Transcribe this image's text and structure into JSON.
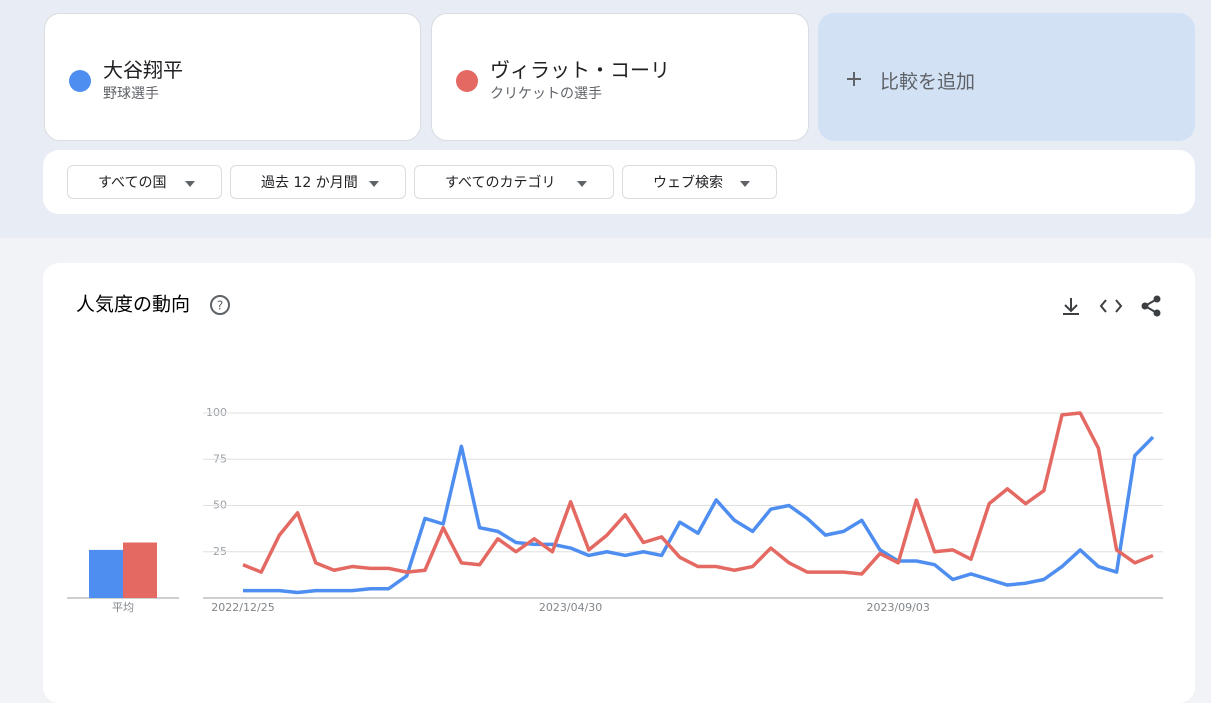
{
  "terms": [
    {
      "subtitle": "野球選手"
    },
    {
      "subtitle": "クリケットの選手"
    }
  ],
  "add_compare": "比較を追加",
  "filters": [
    "すべての国",
    "過去 12 か月間",
    "すべてのカテゴリ",
    "ウェブ検索"
  ],
  "chart_data": {
    "type": "line",
    "title": "人気度の動向",
    "categories": [
      "2022/12/25",
      null,
      null,
      null,
      null,
      null,
      null,
      null,
      null,
      null,
      null,
      null,
      null,
      null,
      null,
      null,
      null,
      null,
      "2023/04/30",
      null,
      null,
      null,
      null,
      null,
      null,
      null,
      null,
      null,
      null,
      null,
      null,
      null,
      null,
      null,
      null,
      null,
      "2023/09/03",
      null,
      null,
      null,
      null,
      null,
      null,
      null,
      null,
      null,
      null,
      null,
      null,
      null,
      null
    ],
    "series": [
      {
        "name": "大谷翔平",
        "color": "#4e8ef0",
        "values": [
          4,
          4,
          4,
          3,
          4,
          4,
          4,
          5,
          5,
          12,
          43,
          40,
          82,
          38,
          36,
          30,
          29,
          29,
          27,
          23,
          25,
          23,
          25,
          23,
          41,
          35,
          53,
          42,
          36,
          48,
          50,
          43,
          34,
          36,
          42,
          26,
          20,
          20,
          18,
          10,
          13,
          10,
          7,
          8,
          10,
          17,
          26,
          17,
          14,
          77,
          87
        ]
      },
      {
        "name": "ヴィラット・コーリ",
        "color": "#e46962",
        "values": [
          18,
          14,
          34,
          46,
          19,
          15,
          17,
          16,
          16,
          14,
          15,
          38,
          19,
          18,
          32,
          25,
          32,
          25,
          52,
          26,
          34,
          45,
          30,
          33,
          22,
          17,
          17,
          15,
          17,
          27,
          19,
          14,
          14,
          14,
          13,
          24,
          19,
          53,
          25,
          26,
          21,
          51,
          59,
          51,
          58,
          99,
          100,
          81,
          26,
          19,
          23
        ]
      }
    ],
    "ylim": [
      0,
      100
    ],
    "yticks": [
      25,
      50,
      75,
      100
    ],
    "grid": true,
    "average": {
      "label": "平均",
      "values": [
        26,
        30
      ]
    }
  }
}
